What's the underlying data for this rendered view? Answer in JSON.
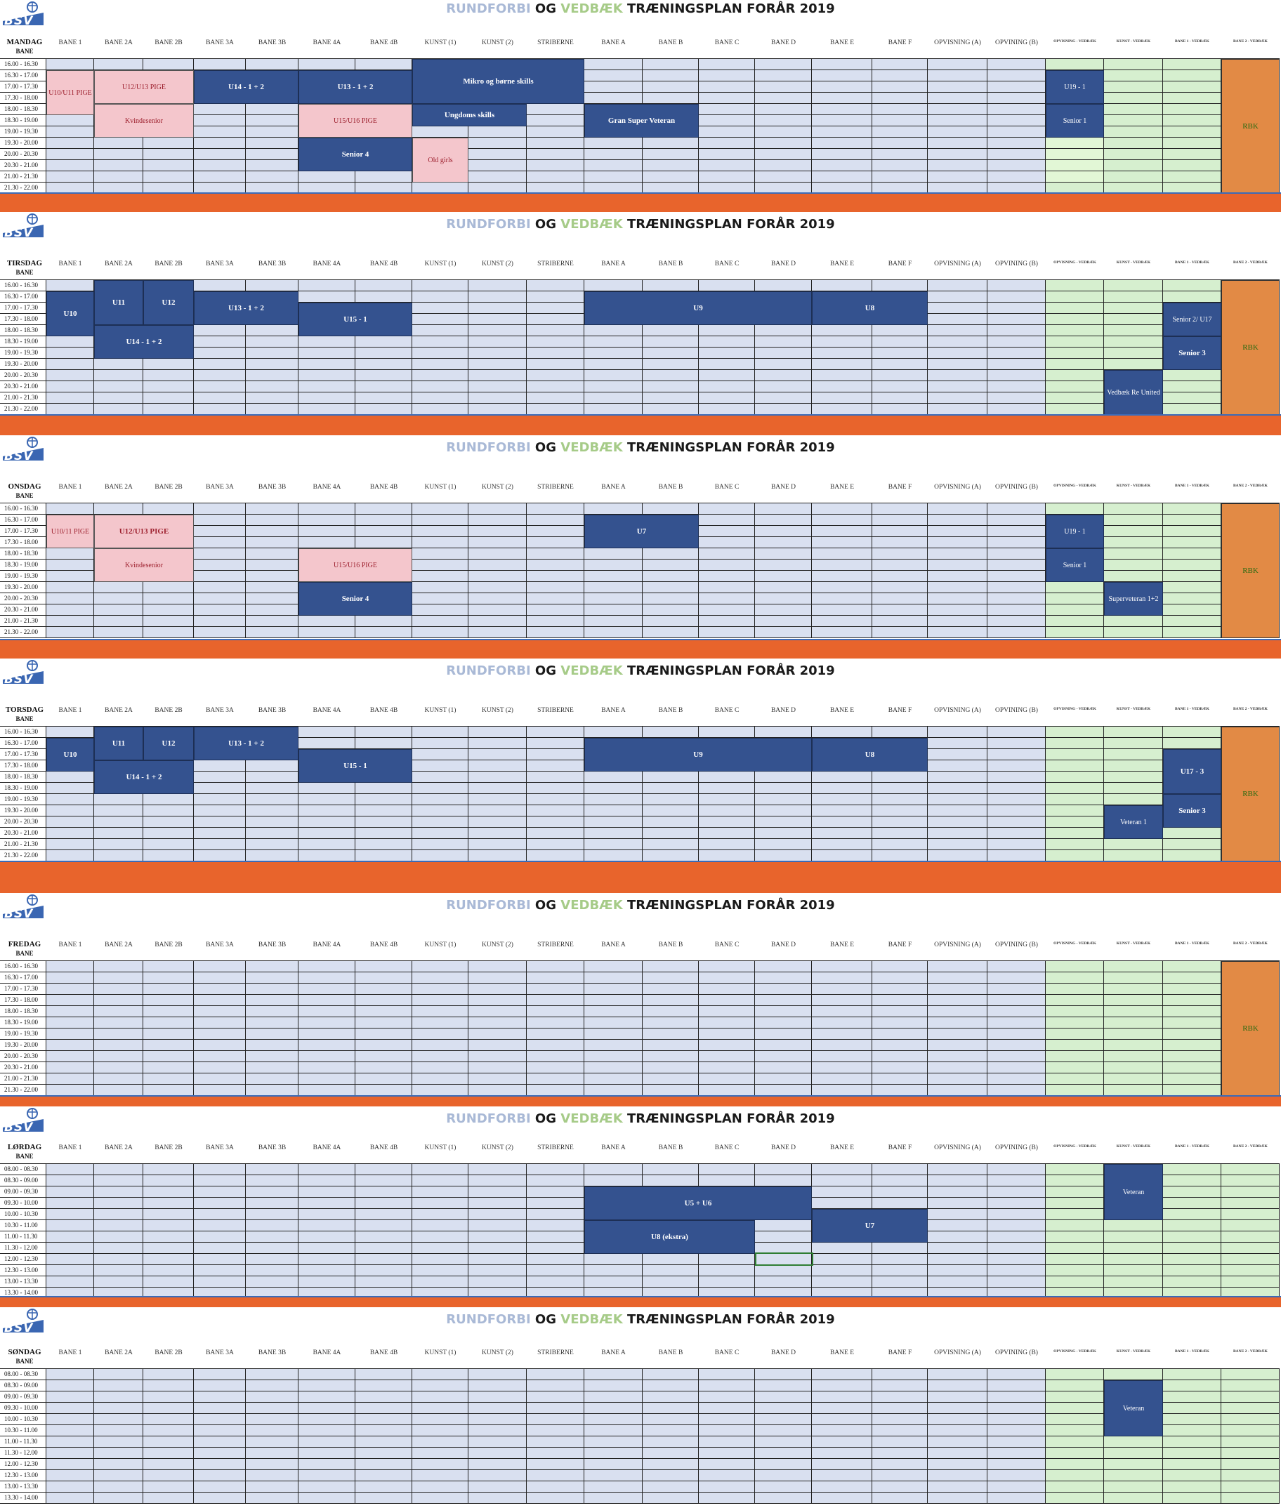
{
  "title": {
    "part1": "RUNDFORBI",
    "part2": "OG",
    "part3": "VEDBÆK",
    "part4": "TRÆNINGSPLAN FORÅR 2019"
  },
  "logo_text": "BSV",
  "colors": {
    "band": "#E8642C",
    "block": "#34528F",
    "pink": "#F4C6CC",
    "cellBlue": "#D9E0F0",
    "cellGreen": "#D6EFCF",
    "orange": "#E28A45"
  },
  "headers": [
    "BANE 1",
    "BANE 2A",
    "BANE 2B",
    "BANE 3A",
    "BANE 3B",
    "BANE 4A",
    "BANE 4B",
    "KUNST (1)",
    "KUNST (2)",
    "STRIBERNE",
    "BANE A",
    "BANE B",
    "BANE C",
    "BANE D",
    "BANE E",
    "BANE F",
    "OPVISNING (A)",
    "OPVINING (B)",
    "OPVISNING - VEDBÆK",
    "KUNST - VEDBÆK",
    "BANE 1 - VEDBÆK",
    "BANE 2 - VEDBÆK"
  ],
  "bane_label": "BANE",
  "times_evening": [
    "16.00 - 16.30",
    "16.30 - 17.00",
    "17.00 - 17.30",
    "17.30 - 18.00",
    "18.00 - 18.30",
    "18.30 - 19.00",
    "19.00 - 19.30",
    "19.30 - 20.00",
    "20.00 - 20.30",
    "20.30 - 21.00",
    "21.00 - 21.30",
    "21.30 - 22.00"
  ],
  "times_morning": [
    "08.00 - 08.30",
    "08.30 - 09.00",
    "09.00 - 09.30",
    "09.30 - 10.00",
    "10.00 - 10.30",
    "10.30 - 11.00",
    "11.00 - 11.30",
    "11.30 - 12.00",
    "12.00 - 12.30",
    "12.30 - 13.00",
    "13.00 - 13.30",
    "13.30 - 14.00"
  ],
  "days": [
    {
      "name": "MANDAG",
      "times": "evening",
      "rbk": true,
      "blocks": [
        {
          "label": "U10/U11 PIGE",
          "c": 0,
          "cs": 1,
          "r": 1,
          "rs": 4,
          "style": "pink"
        },
        {
          "label": "U12/U13 PIGE",
          "c": 1,
          "cs": 2,
          "r": 1,
          "rs": 3,
          "style": "pink"
        },
        {
          "label": "Kvindesenior",
          "c": 1,
          "cs": 2,
          "r": 4,
          "rs": 3,
          "style": "pink"
        },
        {
          "label": "U14 - 1 + 2",
          "c": 3,
          "cs": 2,
          "r": 1,
          "rs": 3,
          "style": "navy"
        },
        {
          "label": "U13 - 1 + 2",
          "c": 5,
          "cs": 2,
          "r": 1,
          "rs": 3,
          "style": "navy"
        },
        {
          "label": "U15/U16 PIGE",
          "c": 5,
          "cs": 2,
          "r": 4,
          "rs": 3,
          "style": "pink"
        },
        {
          "label": "Senior 4",
          "c": 5,
          "cs": 2,
          "r": 7,
          "rs": 3,
          "style": "navy"
        },
        {
          "label": "Mikro og børne skills",
          "c": 7,
          "cs": 3,
          "r": 0,
          "rs": 4,
          "style": "navy"
        },
        {
          "label": "Ungdoms skills",
          "c": 7,
          "cs": 2,
          "r": 4,
          "rs": 2,
          "style": "navy"
        },
        {
          "label": "Old girls",
          "c": 7,
          "cs": 1,
          "r": 7,
          "rs": 4,
          "style": "pink"
        },
        {
          "label": "Gran Super Veteran",
          "c": 10,
          "cs": 2,
          "r": 4,
          "rs": 3,
          "style": "navy"
        },
        {
          "label": "U19 - 1",
          "c": 18,
          "cs": 1,
          "r": 1,
          "rs": 3,
          "style": "navy-n"
        },
        {
          "label": "Senior 1",
          "c": 18,
          "cs": 1,
          "r": 4,
          "rs": 3,
          "style": "navy-n"
        }
      ]
    },
    {
      "name": "TIRSDAG",
      "times": "evening",
      "rbk": true,
      "blocks": [
        {
          "label": "U10",
          "c": 0,
          "cs": 1,
          "r": 1,
          "rs": 4,
          "style": "navy"
        },
        {
          "label": "U11",
          "c": 1,
          "cs": 1,
          "r": 0,
          "rs": 4,
          "style": "navy"
        },
        {
          "label": "U12",
          "c": 2,
          "cs": 1,
          "r": 0,
          "rs": 4,
          "style": "navy"
        },
        {
          "label": "U14 - 1 + 2",
          "c": 1,
          "cs": 2,
          "r": 4,
          "rs": 3,
          "style": "navy"
        },
        {
          "label": "U13 - 1 + 2",
          "c": 3,
          "cs": 2,
          "r": 1,
          "rs": 3,
          "style": "navy"
        },
        {
          "label": "U15 - 1",
          "c": 5,
          "cs": 2,
          "r": 2,
          "rs": 3,
          "style": "navy"
        },
        {
          "label": "U9",
          "c": 10,
          "cs": 4,
          "r": 1,
          "rs": 3,
          "style": "navy"
        },
        {
          "label": "U8",
          "c": 14,
          "cs": 2,
          "r": 1,
          "rs": 3,
          "style": "navy"
        },
        {
          "label": "Senior 2/ U17",
          "c": 20,
          "cs": 1,
          "r": 2,
          "rs": 3,
          "style": "navy-n"
        },
        {
          "label": "Senior 3",
          "c": 20,
          "cs": 1,
          "r": 5,
          "rs": 3,
          "style": "navy"
        },
        {
          "label": "Vedbæk Re United",
          "c": 19,
          "cs": 1,
          "r": 8,
          "rs": 4,
          "style": "navy-n"
        }
      ]
    },
    {
      "name": "ONSDAG",
      "times": "evening",
      "rbk": true,
      "blocks": [
        {
          "label": "U10/11 PIGE",
          "c": 0,
          "cs": 1,
          "r": 1,
          "rs": 3,
          "style": "pink"
        },
        {
          "label": "U12/U13 PIGE",
          "c": 1,
          "cs": 2,
          "r": 1,
          "rs": 3,
          "style": "pinkb"
        },
        {
          "label": "Kvindesenior",
          "c": 1,
          "cs": 2,
          "r": 4,
          "rs": 3,
          "style": "pink"
        },
        {
          "label": "U15/U16 PIGE",
          "c": 5,
          "cs": 2,
          "r": 4,
          "rs": 3,
          "style": "pink"
        },
        {
          "label": "Senior 4",
          "c": 5,
          "cs": 2,
          "r": 7,
          "rs": 3,
          "style": "navy"
        },
        {
          "label": "U7",
          "c": 10,
          "cs": 2,
          "r": 1,
          "rs": 3,
          "style": "navy"
        },
        {
          "label": "U19 - 1",
          "c": 18,
          "cs": 1,
          "r": 1,
          "rs": 3,
          "style": "navy-n"
        },
        {
          "label": "Senior 1",
          "c": 18,
          "cs": 1,
          "r": 4,
          "rs": 3,
          "style": "navy-n"
        },
        {
          "label": "Superveteran 1+2",
          "c": 19,
          "cs": 1,
          "r": 7,
          "rs": 3,
          "style": "navy-n"
        }
      ]
    },
    {
      "name": "TORSDAG",
      "times": "evening",
      "rbk": true,
      "blocks": [
        {
          "label": "U10",
          "c": 0,
          "cs": 1,
          "r": 1,
          "rs": 3,
          "style": "navy"
        },
        {
          "label": "U11",
          "c": 1,
          "cs": 1,
          "r": 0,
          "rs": 3,
          "style": "navy"
        },
        {
          "label": "U12",
          "c": 2,
          "cs": 1,
          "r": 0,
          "rs": 3,
          "style": "navy"
        },
        {
          "label": "U14 - 1 + 2",
          "c": 1,
          "cs": 2,
          "r": 3,
          "rs": 3,
          "style": "navy"
        },
        {
          "label": "U13 - 1 + 2",
          "c": 3,
          "cs": 2,
          "r": 0,
          "rs": 3,
          "style": "navy"
        },
        {
          "label": "U15 - 1",
          "c": 5,
          "cs": 2,
          "r": 2,
          "rs": 3,
          "style": "navy"
        },
        {
          "label": "U9",
          "c": 10,
          "cs": 4,
          "r": 1,
          "rs": 3,
          "style": "navy"
        },
        {
          "label": "U8",
          "c": 14,
          "cs": 2,
          "r": 1,
          "rs": 3,
          "style": "navy"
        },
        {
          "label": "U17 - 3",
          "c": 20,
          "cs": 1,
          "r": 2,
          "rs": 4,
          "style": "navy"
        },
        {
          "label": "Senior 3",
          "c": 20,
          "cs": 1,
          "r": 6,
          "rs": 3,
          "style": "navy"
        },
        {
          "label": "Veteran 1",
          "c": 19,
          "cs": 1,
          "r": 7,
          "rs": 3,
          "style": "navy-n"
        }
      ]
    },
    {
      "name": "FREDAG",
      "times": "evening",
      "rbk": true,
      "blocks": []
    },
    {
      "name": "LØRDAG",
      "times": "morning",
      "rbk": false,
      "blocks": [
        {
          "label": "Veteran",
          "c": 19,
          "cs": 1,
          "r": 0,
          "rs": 5,
          "style": "navy-n"
        },
        {
          "label": "U5 + U6",
          "c": 10,
          "cs": 4,
          "r": 2,
          "rs": 3,
          "style": "navy"
        },
        {
          "label": "U8 (ekstra)",
          "c": 10,
          "cs": 3,
          "r": 5,
          "rs": 3,
          "style": "navy"
        },
        {
          "label": "U7",
          "c": 14,
          "cs": 2,
          "r": 4,
          "rs": 3,
          "style": "navy"
        }
      ]
    },
    {
      "name": "SØNDAG",
      "times": "morning",
      "rbk": false,
      "blocks": [
        {
          "label": "Veteran",
          "c": 19,
          "cs": 1,
          "r": 1,
          "rs": 5,
          "style": "navy-n"
        }
      ]
    }
  ],
  "rbk_label": "RBK"
}
